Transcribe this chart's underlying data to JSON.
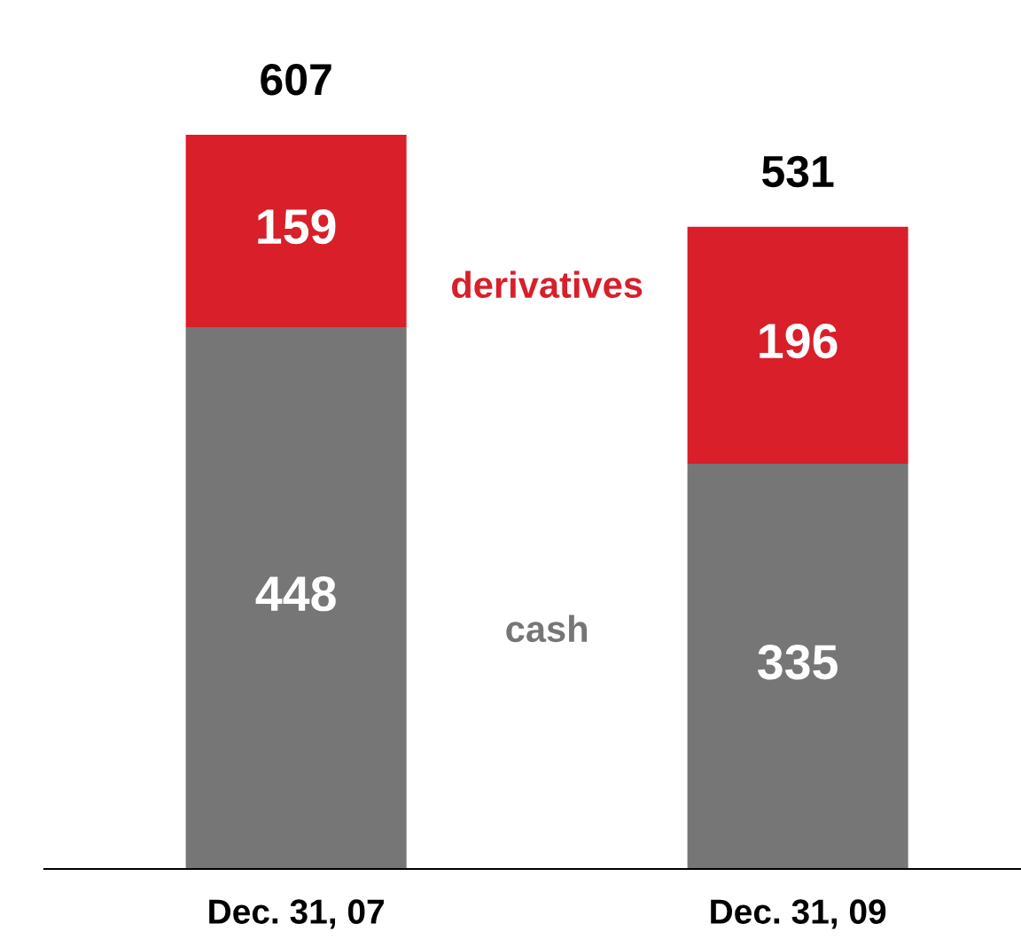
{
  "chart_data": {
    "type": "bar",
    "stacked": true,
    "data_labels": true,
    "categories": [
      "Dec. 31, 07",
      "Dec. 31, 09"
    ],
    "series": [
      {
        "name": "cash",
        "color": "#767676",
        "values": [
          448,
          335
        ]
      },
      {
        "name": "derivatives",
        "color": "#d81f2a",
        "values": [
          159,
          196
        ]
      }
    ],
    "totals": [
      "607",
      "531"
    ]
  }
}
